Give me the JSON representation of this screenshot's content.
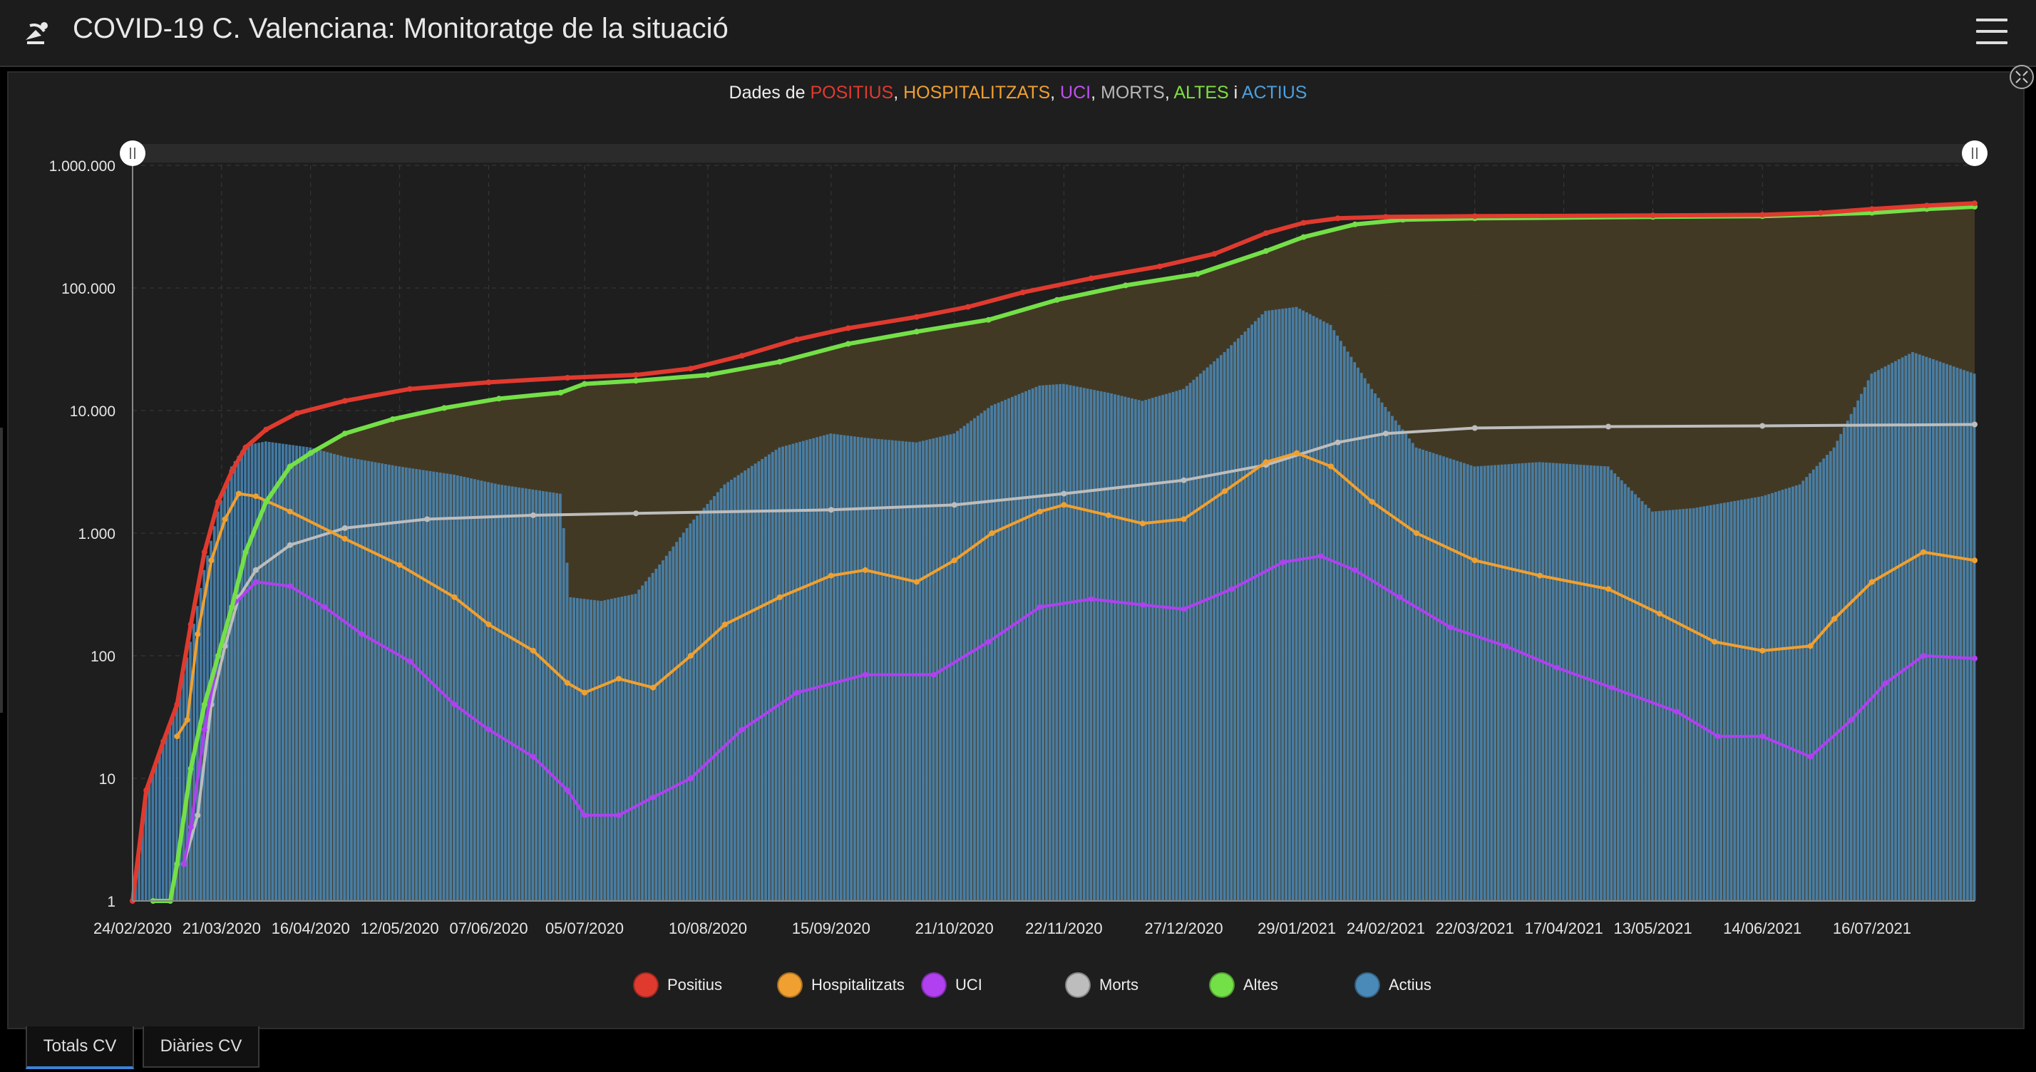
{
  "header": {
    "title": "COVID-19 C. Valenciana: Monitoratge de la situació",
    "logo_icon": "satellite-dish-icon",
    "menu_icon": "hamburger-menu-icon"
  },
  "chart_title_parts": [
    {
      "text": "Dades de ",
      "color": "#eeeeee"
    },
    {
      "text": "POSITIUS",
      "color": "#e03a2f"
    },
    {
      "text": ", ",
      "color": "#eeeeee"
    },
    {
      "text": "HOSPITALITZATS",
      "color": "#f0a030"
    },
    {
      "text": ", ",
      "color": "#eeeeee"
    },
    {
      "text": "UCI",
      "color": "#c050f0"
    },
    {
      "text": ", ",
      "color": "#eeeeee"
    },
    {
      "text": "MORTS",
      "color": "#b8b8b8"
    },
    {
      "text": ", ",
      "color": "#eeeeee"
    },
    {
      "text": "ALTES",
      "color": "#7ee040"
    },
    {
      "text": " i ",
      "color": "#eeeeee"
    },
    {
      "text": "ACTIUS",
      "color": "#4aa0e0"
    }
  ],
  "tabs": [
    {
      "label": "Totals CV",
      "active": true
    },
    {
      "label": "Diàries CV",
      "active": false
    }
  ],
  "colors": {
    "positius": "#e03a2f",
    "hospitalitzats": "#f0a030",
    "uci": "#b040f0",
    "morts": "#bdbdbd",
    "altes": "#74e048",
    "actius": "#4a8ab8",
    "background": "#1e1e1e",
    "fill_area": "#463c26"
  },
  "chart_data": {
    "type": "line",
    "scale": "log",
    "ylim": [
      1,
      1000000
    ],
    "y_ticks": [
      1,
      10,
      100,
      1000,
      10000,
      100000,
      1000000
    ],
    "y_tick_labels": [
      "1",
      "10",
      "100",
      "1.000",
      "10.000",
      "100.000",
      "1.000.000"
    ],
    "x_range": [
      "2020-02-24",
      "2021-08-15"
    ],
    "x_tick_labels": [
      "24/02/2020",
      "21/03/2020",
      "16/04/2020",
      "12/05/2020",
      "07/06/2020",
      "05/07/2020",
      "10/08/2020",
      "15/09/2020",
      "21/10/2020",
      "22/11/2020",
      "27/12/2020",
      "29/01/2021",
      "24/02/2021",
      "22/03/2021",
      "17/04/2021",
      "13/05/2021",
      "14/06/2021",
      "16/07/2021"
    ],
    "grid": true,
    "legend_position": "bottom",
    "series": [
      {
        "name": "Positius",
        "key": "positius",
        "kind": "line",
        "points": [
          [
            "2020-02-24",
            1
          ],
          [
            "2020-02-28",
            8
          ],
          [
            "2020-03-04",
            20
          ],
          [
            "2020-03-08",
            40
          ],
          [
            "2020-03-12",
            180
          ],
          [
            "2020-03-16",
            700
          ],
          [
            "2020-03-20",
            1800
          ],
          [
            "2020-03-24",
            3200
          ],
          [
            "2020-03-28",
            5000
          ],
          [
            "2020-04-03",
            7000
          ],
          [
            "2020-04-12",
            9500
          ],
          [
            "2020-04-26",
            12000
          ],
          [
            "2020-05-15",
            15000
          ],
          [
            "2020-06-07",
            17000
          ],
          [
            "2020-06-30",
            18500
          ],
          [
            "2020-07-20",
            19500
          ],
          [
            "2020-08-05",
            22000
          ],
          [
            "2020-08-20",
            28000
          ],
          [
            "2020-09-05",
            38000
          ],
          [
            "2020-09-20",
            47000
          ],
          [
            "2020-10-10",
            58000
          ],
          [
            "2020-10-25",
            70000
          ],
          [
            "2020-11-10",
            92000
          ],
          [
            "2020-11-30",
            120000
          ],
          [
            "2020-12-20",
            150000
          ],
          [
            "2021-01-05",
            190000
          ],
          [
            "2021-01-20",
            280000
          ],
          [
            "2021-01-31",
            340000
          ],
          [
            "2021-02-10",
            370000
          ],
          [
            "2021-02-24",
            380000
          ],
          [
            "2021-03-22",
            385000
          ],
          [
            "2021-05-13",
            390000
          ],
          [
            "2021-06-14",
            395000
          ],
          [
            "2021-07-01",
            410000
          ],
          [
            "2021-07-16",
            440000
          ],
          [
            "2021-08-01",
            470000
          ],
          [
            "2021-08-15",
            490000
          ]
        ]
      },
      {
        "name": "Altes",
        "key": "altes",
        "kind": "line",
        "points": [
          [
            "2020-03-01",
            1
          ],
          [
            "2020-03-06",
            1
          ],
          [
            "2020-03-08",
            2
          ],
          [
            "2020-03-12",
            12
          ],
          [
            "2020-03-16",
            40
          ],
          [
            "2020-03-20",
            100
          ],
          [
            "2020-03-24",
            250
          ],
          [
            "2020-03-28",
            700
          ],
          [
            "2020-04-03",
            1800
          ],
          [
            "2020-04-10",
            3500
          ],
          [
            "2020-04-16",
            4500
          ],
          [
            "2020-04-26",
            6500
          ],
          [
            "2020-05-10",
            8500
          ],
          [
            "2020-05-25",
            10500
          ],
          [
            "2020-06-10",
            12500
          ],
          [
            "2020-06-28",
            14000
          ],
          [
            "2020-07-05",
            16500
          ],
          [
            "2020-07-20",
            17500
          ],
          [
            "2020-08-10",
            19500
          ],
          [
            "2020-08-31",
            25000
          ],
          [
            "2020-09-20",
            35000
          ],
          [
            "2020-10-10",
            44000
          ],
          [
            "2020-10-31",
            55000
          ],
          [
            "2020-11-20",
            80000
          ],
          [
            "2020-12-10",
            105000
          ],
          [
            "2020-12-31",
            130000
          ],
          [
            "2021-01-20",
            200000
          ],
          [
            "2021-01-31",
            260000
          ],
          [
            "2021-02-15",
            330000
          ],
          [
            "2021-03-01",
            360000
          ],
          [
            "2021-03-22",
            370000
          ],
          [
            "2021-05-13",
            380000
          ],
          [
            "2021-06-14",
            385000
          ],
          [
            "2021-07-16",
            410000
          ],
          [
            "2021-08-01",
            440000
          ],
          [
            "2021-08-15",
            460000
          ]
        ]
      },
      {
        "name": "Hospitalitzats",
        "key": "hospitalitzats",
        "kind": "line",
        "points": [
          [
            "2020-03-08",
            22
          ],
          [
            "2020-03-11",
            30
          ],
          [
            "2020-03-14",
            150
          ],
          [
            "2020-03-18",
            600
          ],
          [
            "2020-03-22",
            1300
          ],
          [
            "2020-03-26",
            2100
          ],
          [
            "2020-03-31",
            2000
          ],
          [
            "2020-04-10",
            1500
          ],
          [
            "2020-04-26",
            900
          ],
          [
            "2020-05-12",
            550
          ],
          [
            "2020-05-28",
            300
          ],
          [
            "2020-06-07",
            180
          ],
          [
            "2020-06-20",
            110
          ],
          [
            "2020-06-30",
            60
          ],
          [
            "2020-07-05",
            50
          ],
          [
            "2020-07-15",
            65
          ],
          [
            "2020-07-25",
            55
          ],
          [
            "2020-08-05",
            100
          ],
          [
            "2020-08-15",
            180
          ],
          [
            "2020-08-31",
            300
          ],
          [
            "2020-09-15",
            450
          ],
          [
            "2020-09-25",
            500
          ],
          [
            "2020-10-10",
            400
          ],
          [
            "2020-10-21",
            600
          ],
          [
            "2020-11-01",
            1000
          ],
          [
            "2020-11-15",
            1500
          ],
          [
            "2020-11-22",
            1700
          ],
          [
            "2020-12-05",
            1400
          ],
          [
            "2020-12-15",
            1200
          ],
          [
            "2020-12-27",
            1300
          ],
          [
            "2021-01-08",
            2200
          ],
          [
            "2021-01-20",
            3800
          ],
          [
            "2021-01-29",
            4500
          ],
          [
            "2021-02-08",
            3500
          ],
          [
            "2021-02-20",
            1800
          ],
          [
            "2021-03-05",
            1000
          ],
          [
            "2021-03-22",
            600
          ],
          [
            "2021-04-10",
            450
          ],
          [
            "2021-04-30",
            350
          ],
          [
            "2021-05-15",
            220
          ],
          [
            "2021-05-31",
            130
          ],
          [
            "2021-06-14",
            110
          ],
          [
            "2021-06-28",
            120
          ],
          [
            "2021-07-05",
            200
          ],
          [
            "2021-07-16",
            400
          ],
          [
            "2021-07-31",
            700
          ],
          [
            "2021-08-15",
            600
          ]
        ]
      },
      {
        "name": "UCI",
        "key": "uci",
        "kind": "line",
        "points": [
          [
            "2020-03-10",
            2
          ],
          [
            "2020-03-12",
            4
          ],
          [
            "2020-03-16",
            25
          ],
          [
            "2020-03-20",
            100
          ],
          [
            "2020-03-24",
            250
          ],
          [
            "2020-03-31",
            400
          ],
          [
            "2020-04-10",
            370
          ],
          [
            "2020-04-20",
            250
          ],
          [
            "2020-05-01",
            150
          ],
          [
            "2020-05-15",
            90
          ],
          [
            "2020-05-28",
            40
          ],
          [
            "2020-06-07",
            25
          ],
          [
            "2020-06-20",
            15
          ],
          [
            "2020-06-30",
            8
          ],
          [
            "2020-07-05",
            5
          ],
          [
            "2020-07-15",
            5
          ],
          [
            "2020-07-25",
            7
          ],
          [
            "2020-08-05",
            10
          ],
          [
            "2020-08-20",
            25
          ],
          [
            "2020-09-05",
            50
          ],
          [
            "2020-09-25",
            70
          ],
          [
            "2020-10-15",
            70
          ],
          [
            "2020-10-31",
            130
          ],
          [
            "2020-11-15",
            250
          ],
          [
            "2020-11-30",
            290
          ],
          [
            "2020-12-15",
            260
          ],
          [
            "2020-12-27",
            240
          ],
          [
            "2021-01-10",
            350
          ],
          [
            "2021-01-25",
            580
          ],
          [
            "2021-02-05",
            650
          ],
          [
            "2021-02-15",
            500
          ],
          [
            "2021-02-28",
            300
          ],
          [
            "2021-03-15",
            170
          ],
          [
            "2021-03-31",
            120
          ],
          [
            "2021-04-15",
            80
          ],
          [
            "2021-05-01",
            55
          ],
          [
            "2021-05-20",
            35
          ],
          [
            "2021-06-01",
            22
          ],
          [
            "2021-06-14",
            22
          ],
          [
            "2021-06-28",
            15
          ],
          [
            "2021-07-10",
            30
          ],
          [
            "2021-07-20",
            60
          ],
          [
            "2021-07-31",
            100
          ],
          [
            "2021-08-15",
            95
          ]
        ]
      },
      {
        "name": "Morts",
        "key": "morts",
        "kind": "line",
        "points": [
          [
            "2020-03-10",
            2
          ],
          [
            "2020-03-14",
            5
          ],
          [
            "2020-03-18",
            40
          ],
          [
            "2020-03-22",
            120
          ],
          [
            "2020-03-26",
            300
          ],
          [
            "2020-03-31",
            500
          ],
          [
            "2020-04-10",
            800
          ],
          [
            "2020-04-26",
            1100
          ],
          [
            "2020-05-20",
            1300
          ],
          [
            "2020-06-20",
            1400
          ],
          [
            "2020-07-20",
            1450
          ],
          [
            "2020-09-15",
            1550
          ],
          [
            "2020-10-21",
            1700
          ],
          [
            "2020-11-22",
            2100
          ],
          [
            "2020-12-27",
            2700
          ],
          [
            "2021-01-20",
            3600
          ],
          [
            "2021-02-10",
            5500
          ],
          [
            "2021-02-24",
            6500
          ],
          [
            "2021-03-22",
            7200
          ],
          [
            "2021-04-30",
            7400
          ],
          [
            "2021-06-14",
            7500
          ],
          [
            "2021-08-15",
            7700
          ]
        ]
      },
      {
        "name": "Actius",
        "key": "actius",
        "kind": "bar",
        "points": [
          [
            "2020-02-24",
            1
          ],
          [
            "2020-02-28",
            8
          ],
          [
            "2020-03-04",
            20
          ],
          [
            "2020-03-08",
            40
          ],
          [
            "2020-03-12",
            130
          ],
          [
            "2020-03-16",
            500
          ],
          [
            "2020-03-20",
            1500
          ],
          [
            "2020-03-24",
            3500
          ],
          [
            "2020-03-28",
            5200
          ],
          [
            "2020-04-03",
            5600
          ],
          [
            "2020-04-16",
            5000
          ],
          [
            "2020-04-26",
            4200
          ],
          [
            "2020-05-12",
            3500
          ],
          [
            "2020-05-28",
            3000
          ],
          [
            "2020-06-10",
            2500
          ],
          [
            "2020-06-28",
            2100
          ],
          [
            "2020-07-01",
            300
          ],
          [
            "2020-07-10",
            280
          ],
          [
            "2020-07-20",
            320
          ],
          [
            "2020-07-28",
            600
          ],
          [
            "2020-08-05",
            1200
          ],
          [
            "2020-08-15",
            2500
          ],
          [
            "2020-08-31",
            5000
          ],
          [
            "2020-09-15",
            6500
          ],
          [
            "2020-09-25",
            6000
          ],
          [
            "2020-10-10",
            5500
          ],
          [
            "2020-10-21",
            6500
          ],
          [
            "2020-11-01",
            11000
          ],
          [
            "2020-11-15",
            16000
          ],
          [
            "2020-11-22",
            16500
          ],
          [
            "2020-12-05",
            14000
          ],
          [
            "2020-12-15",
            12000
          ],
          [
            "2020-12-27",
            15000
          ],
          [
            "2021-01-08",
            30000
          ],
          [
            "2021-01-20",
            65000
          ],
          [
            "2021-01-29",
            70000
          ],
          [
            "2021-02-08",
            50000
          ],
          [
            "2021-02-20",
            15000
          ],
          [
            "2021-03-05",
            5000
          ],
          [
            "2021-03-22",
            3500
          ],
          [
            "2021-04-10",
            3800
          ],
          [
            "2021-04-30",
            3500
          ],
          [
            "2021-05-13",
            1500
          ],
          [
            "2021-05-25",
            1600
          ],
          [
            "2021-06-14",
            2000
          ],
          [
            "2021-06-25",
            2500
          ],
          [
            "2021-07-05",
            5000
          ],
          [
            "2021-07-16",
            20000
          ],
          [
            "2021-07-28",
            30000
          ],
          [
            "2021-08-15",
            20000
          ]
        ]
      }
    ]
  }
}
